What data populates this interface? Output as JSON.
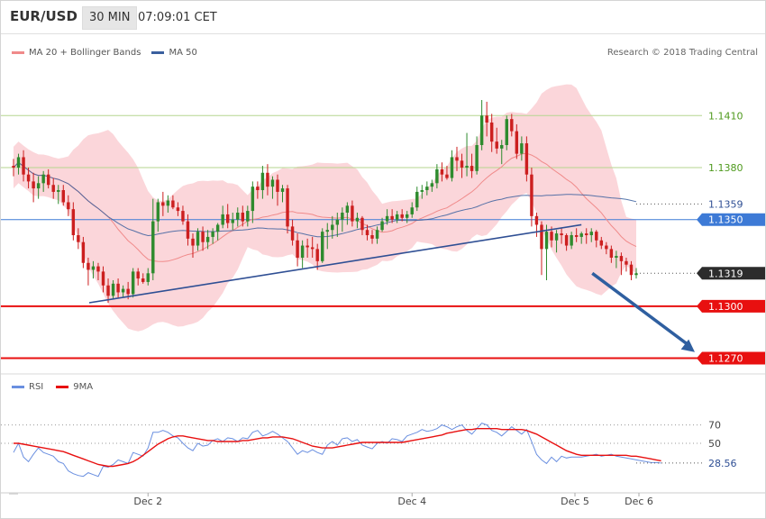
{
  "header": {
    "pair": "EUR/USD",
    "timeframe": "30 MIN",
    "time": "07:09:01 CET"
  },
  "legend": {
    "ma20": "MA 20 + Bollinger Bands",
    "ma50": "MA 50",
    "credit": "Research © 2018 Trading Central"
  },
  "rsi_legend": {
    "rsi": "RSI",
    "ma9": "9MA"
  },
  "colors": {
    "bull": "#2e8b2e",
    "bear": "#cc1f1f",
    "band_fill": "#fbd2d6",
    "ma20": "#f08a8a",
    "ma50": "#3a5f9e",
    "trendline": "#2f4f94",
    "support": "#e81010",
    "pivot": "#3d7ad6",
    "resistance": "#b5d68f",
    "resistance_text": "#4f9a1e",
    "rsi": "#6a8fe0",
    "rsi_ma": "#e81010",
    "current": "#2c2c2c"
  },
  "chart_data": [
    {
      "type": "candlestick",
      "title": "",
      "y_range": [
        1.1263,
        1.1445
      ],
      "x_tick_labels": [
        "Dec 2",
        "Dec 4",
        "Dec 5",
        "Dec 6"
      ],
      "levels": {
        "resistance": [
          {
            "value": 1.141,
            "label": "1.1410"
          },
          {
            "value": 1.138,
            "label": "1.1380"
          },
          {
            "value": 1.1359,
            "label": "1.1359"
          }
        ],
        "pivot": {
          "value": 1.135,
          "label": "1.1350"
        },
        "current": {
          "value": 1.1319,
          "label": "1.1319"
        },
        "support": [
          {
            "value": 1.13,
            "label": "1.1300"
          },
          {
            "value": 1.127,
            "label": "1.1270"
          }
        ]
      },
      "trendline": {
        "from": [
          0,
          1.1302
        ],
        "to": [
          114,
          1.1347
        ]
      },
      "projection": {
        "from": [
          116,
          1.1319
        ],
        "to": [
          130,
          1.1272
        ]
      },
      "candles": [
        [
          1.1381,
          1.1385,
          1.1375,
          1.138
        ],
        [
          1.138,
          1.1388,
          1.1376,
          1.1386
        ],
        [
          1.1386,
          1.139,
          1.1372,
          1.1376
        ],
        [
          1.1376,
          1.138,
          1.1368,
          1.1372
        ],
        [
          1.1372,
          1.1377,
          1.136,
          1.1368
        ],
        [
          1.1368,
          1.1375,
          1.1362,
          1.1371
        ],
        [
          1.1371,
          1.1378,
          1.1366,
          1.1376
        ],
        [
          1.1376,
          1.1379,
          1.1368,
          1.137
        ],
        [
          1.137,
          1.1374,
          1.1362,
          1.1366
        ],
        [
          1.1366,
          1.137,
          1.1359,
          1.1367
        ],
        [
          1.1367,
          1.137,
          1.1358,
          1.136
        ],
        [
          1.136,
          1.1364,
          1.1352,
          1.1356
        ],
        [
          1.1356,
          1.136,
          1.1338,
          1.1341
        ],
        [
          1.1341,
          1.1345,
          1.1333,
          1.1337
        ],
        [
          1.1337,
          1.134,
          1.1322,
          1.1325
        ],
        [
          1.1325,
          1.1328,
          1.1312,
          1.1321
        ],
        [
          1.1321,
          1.1326,
          1.1316,
          1.1323
        ],
        [
          1.1323,
          1.1325,
          1.1315,
          1.132
        ],
        [
          1.132,
          1.1323,
          1.1308,
          1.1312
        ],
        [
          1.1312,
          1.1316,
          1.1302,
          1.1306
        ],
        [
          1.1306,
          1.1315,
          1.1304,
          1.1313
        ],
        [
          1.1313,
          1.1316,
          1.1305,
          1.1308
        ],
        [
          1.1308,
          1.1312,
          1.1305,
          1.131
        ],
        [
          1.131,
          1.1314,
          1.1304,
          1.1307
        ],
        [
          1.1307,
          1.1322,
          1.1305,
          1.132
        ],
        [
          1.132,
          1.1322,
          1.1312,
          1.1316
        ],
        [
          1.1316,
          1.1319,
          1.1313,
          1.1314
        ],
        [
          1.1314,
          1.1322,
          1.1312,
          1.1319
        ],
        [
          1.1319,
          1.1362,
          1.1315,
          1.1349
        ],
        [
          1.1349,
          1.1362,
          1.1343,
          1.136
        ],
        [
          1.136,
          1.1366,
          1.1352,
          1.1358
        ],
        [
          1.1358,
          1.1364,
          1.1354,
          1.1361
        ],
        [
          1.1361,
          1.1364,
          1.1356,
          1.1357
        ],
        [
          1.1357,
          1.136,
          1.1352,
          1.1355
        ],
        [
          1.1355,
          1.1358,
          1.1347,
          1.1349
        ],
        [
          1.1349,
          1.1353,
          1.1335,
          1.1339
        ],
        [
          1.1339,
          1.1342,
          1.1328,
          1.1335
        ],
        [
          1.1335,
          1.1345,
          1.1332,
          1.1343
        ],
        [
          1.1343,
          1.1346,
          1.1332,
          1.1337
        ],
        [
          1.1337,
          1.1344,
          1.1333,
          1.134
        ],
        [
          1.134,
          1.1345,
          1.1336,
          1.1343
        ],
        [
          1.1343,
          1.1348,
          1.1338,
          1.1347
        ],
        [
          1.1347,
          1.1358,
          1.1345,
          1.1353
        ],
        [
          1.1353,
          1.1359,
          1.1345,
          1.1348
        ],
        [
          1.1348,
          1.1354,
          1.1344,
          1.135
        ],
        [
          1.135,
          1.1357,
          1.1346,
          1.1354
        ],
        [
          1.1354,
          1.1358,
          1.1346,
          1.1349
        ],
        [
          1.1349,
          1.1358,
          1.1346,
          1.1355
        ],
        [
          1.1355,
          1.1372,
          1.1348,
          1.1369
        ],
        [
          1.1369,
          1.1372,
          1.1362,
          1.1367
        ],
        [
          1.1367,
          1.1381,
          1.1362,
          1.1377
        ],
        [
          1.1377,
          1.1382,
          1.1364,
          1.1369
        ],
        [
          1.1369,
          1.1375,
          1.1362,
          1.1373
        ],
        [
          1.1373,
          1.1376,
          1.1358,
          1.1366
        ],
        [
          1.1366,
          1.137,
          1.136,
          1.1368
        ],
        [
          1.1368,
          1.137,
          1.1342,
          1.1346
        ],
        [
          1.1346,
          1.135,
          1.1335,
          1.1338
        ],
        [
          1.1338,
          1.1342,
          1.1323,
          1.1328
        ],
        [
          1.1328,
          1.1338,
          1.1322,
          1.1335
        ],
        [
          1.1335,
          1.1339,
          1.1328,
          1.1334
        ],
        [
          1.1334,
          1.134,
          1.1328,
          1.1333
        ],
        [
          1.1333,
          1.1336,
          1.1321,
          1.1326
        ],
        [
          1.1326,
          1.1345,
          1.1325,
          1.1343
        ],
        [
          1.1343,
          1.1348,
          1.1333,
          1.1344
        ],
        [
          1.1344,
          1.1352,
          1.1339,
          1.1347
        ],
        [
          1.1347,
          1.1354,
          1.134,
          1.135
        ],
        [
          1.135,
          1.1357,
          1.1343,
          1.1354
        ],
        [
          1.1354,
          1.136,
          1.1347,
          1.1358
        ],
        [
          1.1358,
          1.1361,
          1.1346,
          1.1349
        ],
        [
          1.1349,
          1.1354,
          1.1345,
          1.1351
        ],
        [
          1.1351,
          1.1352,
          1.1341,
          1.1344
        ],
        [
          1.1344,
          1.1347,
          1.1338,
          1.1341
        ],
        [
          1.1341,
          1.1344,
          1.1336,
          1.1339
        ],
        [
          1.1339,
          1.1346,
          1.1336,
          1.1344
        ],
        [
          1.1344,
          1.1351,
          1.1343,
          1.1349
        ],
        [
          1.1349,
          1.1356,
          1.1347,
          1.1352
        ],
        [
          1.1352,
          1.1356,
          1.1348,
          1.135
        ],
        [
          1.135,
          1.1355,
          1.1348,
          1.1353
        ],
        [
          1.1353,
          1.1356,
          1.1349,
          1.1351
        ],
        [
          1.1351,
          1.1355,
          1.1348,
          1.1353
        ],
        [
          1.1353,
          1.136,
          1.1351,
          1.1357
        ],
        [
          1.1357,
          1.1369,
          1.1355,
          1.1366
        ],
        [
          1.1366,
          1.137,
          1.1362,
          1.1367
        ],
        [
          1.1367,
          1.1372,
          1.1364,
          1.1369
        ],
        [
          1.1369,
          1.1373,
          1.1366,
          1.1371
        ],
        [
          1.1371,
          1.1382,
          1.1368,
          1.1379
        ],
        [
          1.1379,
          1.1383,
          1.1372,
          1.1376
        ],
        [
          1.1376,
          1.1381,
          1.1373,
          1.1374
        ],
        [
          1.1374,
          1.139,
          1.1372,
          1.1386
        ],
        [
          1.1386,
          1.1392,
          1.1378,
          1.1384
        ],
        [
          1.1384,
          1.1388,
          1.1374,
          1.138
        ],
        [
          1.138,
          1.14,
          1.1375,
          1.1381
        ],
        [
          1.1381,
          1.1388,
          1.1374,
          1.1378
        ],
        [
          1.1378,
          1.1398,
          1.1376,
          1.1393
        ],
        [
          1.1393,
          1.1419,
          1.139,
          1.141
        ],
        [
          1.141,
          1.1418,
          1.1398,
          1.1406
        ],
        [
          1.1406,
          1.1411,
          1.1389,
          1.1395
        ],
        [
          1.1395,
          1.1403,
          1.1388,
          1.1391
        ],
        [
          1.1391,
          1.1396,
          1.1382,
          1.1393
        ],
        [
          1.1393,
          1.141,
          1.139,
          1.1408
        ],
        [
          1.1408,
          1.1411,
          1.1398,
          1.1401
        ],
        [
          1.1401,
          1.1405,
          1.1385,
          1.1388
        ],
        [
          1.1388,
          1.1398,
          1.1384,
          1.1394
        ],
        [
          1.1394,
          1.1398,
          1.1372,
          1.1376
        ],
        [
          1.1376,
          1.138,
          1.1346,
          1.1352
        ],
        [
          1.1352,
          1.1354,
          1.134,
          1.1347
        ],
        [
          1.1347,
          1.1349,
          1.1318,
          1.1333
        ],
        [
          1.1333,
          1.1347,
          1.1315,
          1.1343
        ],
        [
          1.1343,
          1.1346,
          1.1334,
          1.1338
        ],
        [
          1.1338,
          1.1344,
          1.1331,
          1.1342
        ],
        [
          1.1342,
          1.1345,
          1.1336,
          1.1341
        ],
        [
          1.1341,
          1.1342,
          1.1332,
          1.1335
        ],
        [
          1.1335,
          1.1343,
          1.1333,
          1.1341
        ],
        [
          1.1341,
          1.1345,
          1.1337,
          1.134
        ],
        [
          1.134,
          1.1343,
          1.1336,
          1.1342
        ],
        [
          1.1342,
          1.1345,
          1.1336,
          1.1341
        ],
        [
          1.1341,
          1.1345,
          1.1337,
          1.1343
        ],
        [
          1.1343,
          1.1344,
          1.1334,
          1.1338
        ],
        [
          1.1338,
          1.134,
          1.1333,
          1.1335
        ],
        [
          1.1335,
          1.1337,
          1.133,
          1.1333
        ],
        [
          1.1333,
          1.1335,
          1.1325,
          1.1328
        ],
        [
          1.1328,
          1.1332,
          1.1322,
          1.1329
        ],
        [
          1.1329,
          1.1331,
          1.1318,
          1.1326
        ],
        [
          1.1326,
          1.1328,
          1.132,
          1.1324
        ],
        [
          1.1324,
          1.1326,
          1.1315,
          1.1318
        ],
        [
          1.1318,
          1.1322,
          1.1316,
          1.1319
        ]
      ]
    },
    {
      "type": "line",
      "title": "",
      "y_range": [
        0,
        100
      ],
      "y_tick_labels": [
        "70",
        "50"
      ],
      "current_label": "28.56",
      "series": [
        {
          "name": "RSI",
          "values": [
            40,
            50,
            35,
            30,
            38,
            45,
            40,
            38,
            36,
            30,
            28,
            20,
            17,
            15,
            14,
            18,
            16,
            14,
            25,
            24,
            27,
            32,
            30,
            28,
            40,
            38,
            36,
            45,
            62,
            62,
            64,
            62,
            58,
            56,
            50,
            45,
            42,
            50,
            47,
            48,
            53,
            55,
            52,
            56,
            55,
            52,
            56,
            55,
            62,
            64,
            58,
            60,
            63,
            60,
            56,
            52,
            45,
            38,
            42,
            40,
            43,
            40,
            38,
            48,
            52,
            48,
            55,
            56,
            52,
            54,
            48,
            46,
            44,
            50,
            52,
            50,
            55,
            54,
            52,
            58,
            60,
            62,
            65,
            63,
            64,
            66,
            70,
            68,
            65,
            68,
            70,
            64,
            60,
            66,
            72,
            70,
            64,
            62,
            58,
            63,
            68,
            64,
            60,
            65,
            52,
            38,
            32,
            28,
            35,
            30,
            36,
            34,
            35,
            35,
            35,
            36,
            37,
            38,
            36,
            37,
            38,
            36,
            35,
            34,
            33,
            32,
            31,
            30,
            29,
            29,
            28.56
          ]
        },
        {
          "name": "9MA",
          "values": [
            50,
            50,
            49,
            48,
            47,
            46,
            45,
            44,
            43,
            42,
            41,
            39,
            37,
            35,
            33,
            31,
            29,
            27,
            26,
            25,
            25,
            26,
            27,
            28,
            30,
            33,
            37,
            41,
            45,
            49,
            52,
            55,
            57,
            58,
            58,
            57,
            56,
            55,
            54,
            53,
            53,
            52,
            52,
            52,
            52,
            52,
            53,
            53,
            54,
            55,
            56,
            56,
            57,
            57,
            57,
            56,
            55,
            53,
            51,
            49,
            47,
            46,
            45,
            45,
            45,
            46,
            47,
            48,
            49,
            50,
            51,
            51,
            51,
            51,
            51,
            51,
            51,
            51,
            51,
            52,
            53,
            54,
            55,
            56,
            57,
            58,
            59,
            61,
            62,
            63,
            64,
            65,
            65,
            66,
            66,
            66,
            66,
            66,
            65,
            65,
            65,
            65,
            65,
            64,
            62,
            60,
            57,
            54,
            51,
            48,
            45,
            42,
            40,
            38,
            37,
            37,
            37,
            37,
            37,
            37,
            37,
            37,
            37,
            37,
            36,
            36,
            35,
            34,
            33,
            32,
            31
          ]
        }
      ]
    }
  ]
}
